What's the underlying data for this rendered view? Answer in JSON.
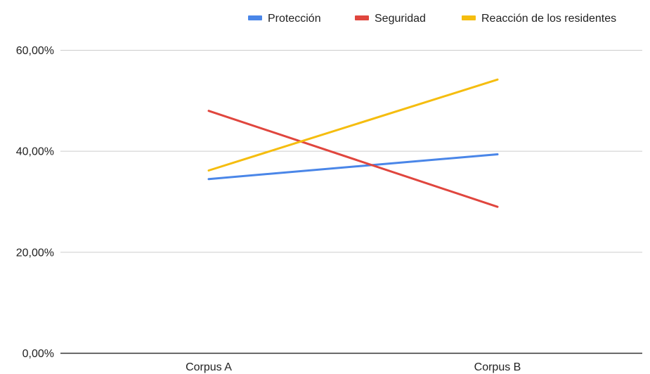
{
  "chart_data": {
    "type": "line",
    "categories": [
      "Corpus A",
      "Corpus B"
    ],
    "series": [
      {
        "name": "Protección",
        "values": [
          34.5,
          39.4
        ],
        "color": "#4a86e8"
      },
      {
        "name": "Seguridad",
        "values": [
          48.0,
          29.0
        ],
        "color": "#e0463e"
      },
      {
        "name": "Reacción de los residentes",
        "values": [
          36.2,
          54.2
        ],
        "color": "#f5bd0f"
      }
    ],
    "y_ticks": [
      "0,00%",
      "20,00%",
      "40,00%",
      "60,00%"
    ],
    "y_tick_values": [
      0,
      20,
      40,
      60
    ],
    "ylim": [
      0,
      60
    ],
    "grid": true,
    "legend_position": "top-right",
    "title": "",
    "xlabel": "",
    "ylabel": ""
  }
}
